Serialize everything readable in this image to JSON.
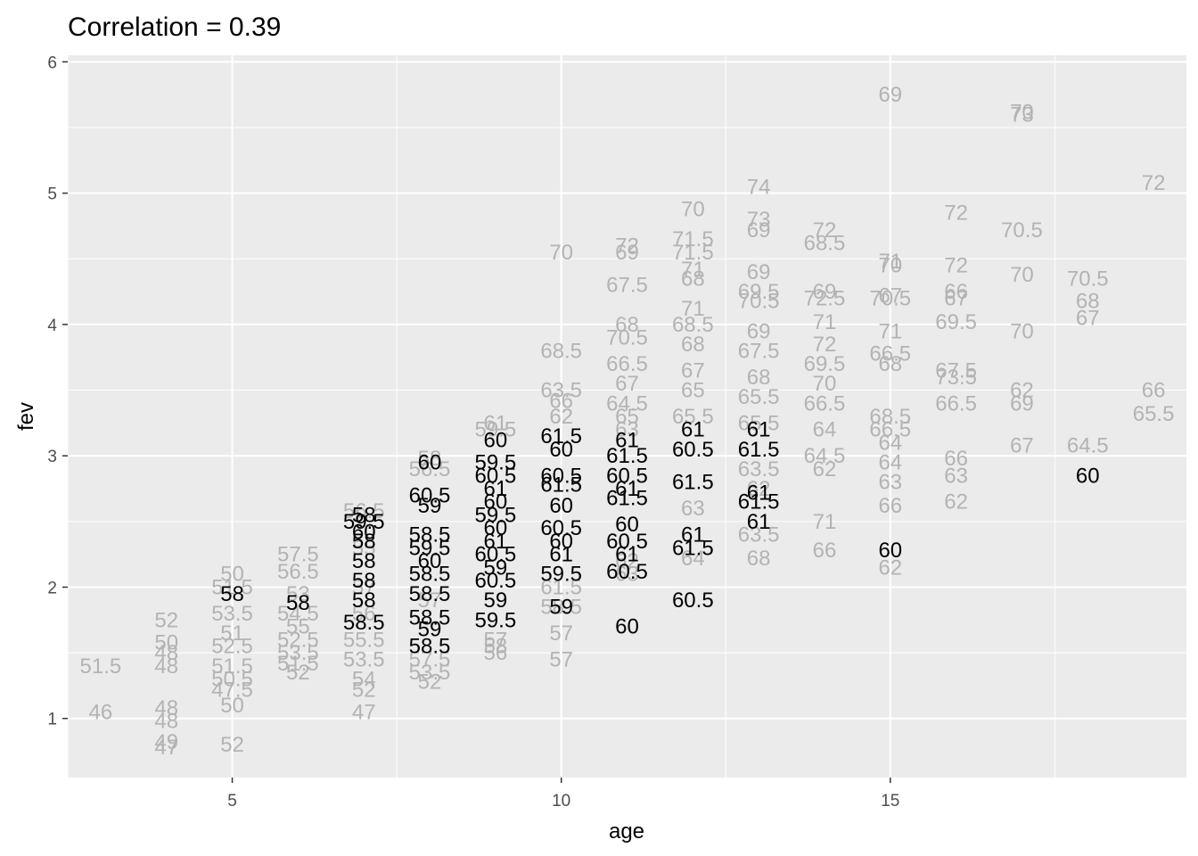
{
  "chart_data": {
    "type": "scatter",
    "title": "Correlation = 0.39",
    "xlabel": "age",
    "ylabel": "fev",
    "xlim": [
      2.5,
      19.5
    ],
    "ylim": [
      0.55,
      6.05
    ],
    "x_ticks": [
      5,
      10,
      15
    ],
    "y_ticks": [
      1,
      2,
      3,
      4,
      5,
      6
    ],
    "grid": true,
    "background": "#ebebeb",
    "colors": {
      "highlight": "#000000",
      "muted": "#b3b3b3"
    },
    "points_note": "text labels (height in inches) plotted at age vs fev; highlighted labels drawn in black, others in grey",
    "highlighted_points": [
      {
        "x": 5,
        "y": 1.95,
        "label": "58"
      },
      {
        "x": 6,
        "y": 1.88,
        "label": "58"
      },
      {
        "x": 7,
        "y": 2.55,
        "label": "58"
      },
      {
        "x": 7,
        "y": 2.5,
        "label": "59.5"
      },
      {
        "x": 7,
        "y": 2.42,
        "label": "60"
      },
      {
        "x": 7,
        "y": 2.35,
        "label": "58"
      },
      {
        "x": 7,
        "y": 2.2,
        "label": "58"
      },
      {
        "x": 7,
        "y": 2.05,
        "label": "58"
      },
      {
        "x": 7,
        "y": 1.9,
        "label": "58"
      },
      {
        "x": 7,
        "y": 1.73,
        "label": "58.5"
      },
      {
        "x": 8,
        "y": 2.95,
        "label": "60"
      },
      {
        "x": 8,
        "y": 2.7,
        "label": "60.5"
      },
      {
        "x": 8,
        "y": 2.62,
        "label": "59"
      },
      {
        "x": 8,
        "y": 2.4,
        "label": "58.5"
      },
      {
        "x": 8,
        "y": 2.3,
        "label": "59.5"
      },
      {
        "x": 8,
        "y": 2.2,
        "label": "60"
      },
      {
        "x": 8,
        "y": 2.1,
        "label": "58.5"
      },
      {
        "x": 8,
        "y": 1.95,
        "label": "58.5"
      },
      {
        "x": 8,
        "y": 1.77,
        "label": "58.5"
      },
      {
        "x": 8,
        "y": 1.68,
        "label": "59"
      },
      {
        "x": 8,
        "y": 1.55,
        "label": "58.5"
      },
      {
        "x": 9,
        "y": 3.12,
        "label": "60"
      },
      {
        "x": 9,
        "y": 2.95,
        "label": "59.5"
      },
      {
        "x": 9,
        "y": 2.85,
        "label": "60.5"
      },
      {
        "x": 9,
        "y": 2.75,
        "label": "61"
      },
      {
        "x": 9,
        "y": 2.65,
        "label": "60"
      },
      {
        "x": 9,
        "y": 2.55,
        "label": "59.5"
      },
      {
        "x": 9,
        "y": 2.45,
        "label": "60"
      },
      {
        "x": 9,
        "y": 2.35,
        "label": "61"
      },
      {
        "x": 9,
        "y": 2.25,
        "label": "60.5"
      },
      {
        "x": 9,
        "y": 2.15,
        "label": "59"
      },
      {
        "x": 9,
        "y": 2.05,
        "label": "60.5"
      },
      {
        "x": 9,
        "y": 1.9,
        "label": "59"
      },
      {
        "x": 9,
        "y": 1.75,
        "label": "59.5"
      },
      {
        "x": 10,
        "y": 3.15,
        "label": "61.5"
      },
      {
        "x": 10,
        "y": 3.05,
        "label": "60"
      },
      {
        "x": 10,
        "y": 2.85,
        "label": "60.5"
      },
      {
        "x": 10,
        "y": 2.78,
        "label": "61.5"
      },
      {
        "x": 10,
        "y": 2.62,
        "label": "60"
      },
      {
        "x": 10,
        "y": 2.45,
        "label": "60.5"
      },
      {
        "x": 10,
        "y": 2.35,
        "label": "60"
      },
      {
        "x": 10,
        "y": 2.25,
        "label": "61"
      },
      {
        "x": 10,
        "y": 2.1,
        "label": "59.5"
      },
      {
        "x": 10,
        "y": 1.85,
        "label": "59"
      },
      {
        "x": 11,
        "y": 3.12,
        "label": "61"
      },
      {
        "x": 11,
        "y": 3.0,
        "label": "61.5"
      },
      {
        "x": 11,
        "y": 2.85,
        "label": "60.5"
      },
      {
        "x": 11,
        "y": 2.75,
        "label": "61"
      },
      {
        "x": 11,
        "y": 2.68,
        "label": "61.5"
      },
      {
        "x": 11,
        "y": 2.48,
        "label": "60"
      },
      {
        "x": 11,
        "y": 2.35,
        "label": "60.5"
      },
      {
        "x": 11,
        "y": 2.25,
        "label": "61"
      },
      {
        "x": 11,
        "y": 2.12,
        "label": "60.5"
      },
      {
        "x": 11,
        "y": 1.7,
        "label": "60"
      },
      {
        "x": 12,
        "y": 3.2,
        "label": "61"
      },
      {
        "x": 12,
        "y": 3.05,
        "label": "60.5"
      },
      {
        "x": 12,
        "y": 2.8,
        "label": "61.5"
      },
      {
        "x": 12,
        "y": 2.4,
        "label": "61"
      },
      {
        "x": 12,
        "y": 2.3,
        "label": "61.5"
      },
      {
        "x": 12,
        "y": 1.9,
        "label": "60.5"
      },
      {
        "x": 13,
        "y": 3.2,
        "label": "61"
      },
      {
        "x": 13,
        "y": 3.05,
        "label": "61.5"
      },
      {
        "x": 13,
        "y": 2.72,
        "label": "61"
      },
      {
        "x": 13,
        "y": 2.65,
        "label": "61.5"
      },
      {
        "x": 13,
        "y": 2.5,
        "label": "61"
      },
      {
        "x": 15,
        "y": 2.28,
        "label": "60"
      },
      {
        "x": 18,
        "y": 2.85,
        "label": "60"
      }
    ],
    "muted_points": [
      {
        "x": 3,
        "y": 1.4,
        "label": "51.5"
      },
      {
        "x": 3,
        "y": 1.05,
        "label": "46"
      },
      {
        "x": 4,
        "y": 1.75,
        "label": "52"
      },
      {
        "x": 4,
        "y": 1.58,
        "label": "50"
      },
      {
        "x": 4,
        "y": 1.5,
        "label": "48"
      },
      {
        "x": 4,
        "y": 1.4,
        "label": "48"
      },
      {
        "x": 4,
        "y": 1.08,
        "label": "48"
      },
      {
        "x": 4,
        "y": 0.98,
        "label": "48"
      },
      {
        "x": 4,
        "y": 0.82,
        "label": "49"
      },
      {
        "x": 4,
        "y": 0.78,
        "label": "47"
      },
      {
        "x": 5,
        "y": 2.1,
        "label": "50"
      },
      {
        "x": 5,
        "y": 2.0,
        "label": "51.5"
      },
      {
        "x": 5,
        "y": 1.8,
        "label": "53.5"
      },
      {
        "x": 5,
        "y": 1.65,
        "label": "51"
      },
      {
        "x": 5,
        "y": 1.55,
        "label": "52.5"
      },
      {
        "x": 5,
        "y": 1.4,
        "label": "51.5"
      },
      {
        "x": 5,
        "y": 1.3,
        "label": "50.5"
      },
      {
        "x": 5,
        "y": 1.22,
        "label": "47.5"
      },
      {
        "x": 5,
        "y": 1.1,
        "label": "50"
      },
      {
        "x": 5,
        "y": 0.8,
        "label": "52"
      },
      {
        "x": 6,
        "y": 2.25,
        "label": "57.5"
      },
      {
        "x": 6,
        "y": 2.12,
        "label": "56.5"
      },
      {
        "x": 6,
        "y": 1.95,
        "label": "53"
      },
      {
        "x": 6,
        "y": 1.8,
        "label": "54.5"
      },
      {
        "x": 6,
        "y": 1.7,
        "label": "55"
      },
      {
        "x": 6,
        "y": 1.6,
        "label": "52.5"
      },
      {
        "x": 6,
        "y": 1.5,
        "label": "53.5"
      },
      {
        "x": 6,
        "y": 1.42,
        "label": "51.5"
      },
      {
        "x": 6,
        "y": 1.35,
        "label": "52"
      },
      {
        "x": 7,
        "y": 2.58,
        "label": "56.5"
      },
      {
        "x": 7,
        "y": 2.3,
        "label": "55"
      },
      {
        "x": 7,
        "y": 2.0,
        "label": "57"
      },
      {
        "x": 7,
        "y": 1.8,
        "label": "56"
      },
      {
        "x": 7,
        "y": 1.6,
        "label": "55.5"
      },
      {
        "x": 7,
        "y": 1.45,
        "label": "53.5"
      },
      {
        "x": 7,
        "y": 1.3,
        "label": "54"
      },
      {
        "x": 7,
        "y": 1.22,
        "label": "52"
      },
      {
        "x": 7,
        "y": 1.05,
        "label": "47"
      },
      {
        "x": 8,
        "y": 2.98,
        "label": "58"
      },
      {
        "x": 8,
        "y": 2.9,
        "label": "56.5"
      },
      {
        "x": 8,
        "y": 1.9,
        "label": "57"
      },
      {
        "x": 8,
        "y": 1.45,
        "label": "57.5"
      },
      {
        "x": 8,
        "y": 1.35,
        "label": "53.5"
      },
      {
        "x": 8,
        "y": 1.28,
        "label": "52"
      },
      {
        "x": 9,
        "y": 3.25,
        "label": "61"
      },
      {
        "x": 9,
        "y": 3.2,
        "label": "59.5"
      },
      {
        "x": 9,
        "y": 1.6,
        "label": "57"
      },
      {
        "x": 9,
        "y": 1.55,
        "label": "58"
      },
      {
        "x": 9,
        "y": 1.5,
        "label": "56"
      },
      {
        "x": 10,
        "y": 4.55,
        "label": "70"
      },
      {
        "x": 10,
        "y": 3.8,
        "label": "68.5"
      },
      {
        "x": 10,
        "y": 3.5,
        "label": "63.5"
      },
      {
        "x": 10,
        "y": 3.42,
        "label": "66"
      },
      {
        "x": 10,
        "y": 3.3,
        "label": "62"
      },
      {
        "x": 10,
        "y": 2.0,
        "label": "61.5"
      },
      {
        "x": 10,
        "y": 1.85,
        "label": "58.5"
      },
      {
        "x": 10,
        "y": 1.65,
        "label": "57"
      },
      {
        "x": 10,
        "y": 1.45,
        "label": "57"
      },
      {
        "x": 11,
        "y": 4.6,
        "label": "72"
      },
      {
        "x": 11,
        "y": 4.55,
        "label": "69"
      },
      {
        "x": 11,
        "y": 4.3,
        "label": "67.5"
      },
      {
        "x": 11,
        "y": 4.0,
        "label": "68"
      },
      {
        "x": 11,
        "y": 3.9,
        "label": "70.5"
      },
      {
        "x": 11,
        "y": 3.7,
        "label": "66.5"
      },
      {
        "x": 11,
        "y": 3.55,
        "label": "67"
      },
      {
        "x": 11,
        "y": 3.4,
        "label": "64.5"
      },
      {
        "x": 11,
        "y": 3.3,
        "label": "65"
      },
      {
        "x": 11,
        "y": 3.2,
        "label": "63"
      },
      {
        "x": 11,
        "y": 2.2,
        "label": "62"
      },
      {
        "x": 11,
        "y": 2.1,
        "label": "63"
      },
      {
        "x": 12,
        "y": 4.88,
        "label": "70"
      },
      {
        "x": 12,
        "y": 4.65,
        "label": "71.5"
      },
      {
        "x": 12,
        "y": 4.55,
        "label": "71.5"
      },
      {
        "x": 12,
        "y": 4.42,
        "label": "71"
      },
      {
        "x": 12,
        "y": 4.35,
        "label": "68"
      },
      {
        "x": 12,
        "y": 4.12,
        "label": "71"
      },
      {
        "x": 12,
        "y": 4.0,
        "label": "68.5"
      },
      {
        "x": 12,
        "y": 3.85,
        "label": "68"
      },
      {
        "x": 12,
        "y": 3.65,
        "label": "67"
      },
      {
        "x": 12,
        "y": 3.5,
        "label": "65"
      },
      {
        "x": 12,
        "y": 3.3,
        "label": "65.5"
      },
      {
        "x": 12,
        "y": 2.6,
        "label": "63"
      },
      {
        "x": 12,
        "y": 2.22,
        "label": "64"
      },
      {
        "x": 13,
        "y": 5.05,
        "label": "74"
      },
      {
        "x": 13,
        "y": 4.8,
        "label": "73"
      },
      {
        "x": 13,
        "y": 4.72,
        "label": "69"
      },
      {
        "x": 13,
        "y": 4.4,
        "label": "69"
      },
      {
        "x": 13,
        "y": 4.25,
        "label": "69.5"
      },
      {
        "x": 13,
        "y": 4.18,
        "label": "70.5"
      },
      {
        "x": 13,
        "y": 3.95,
        "label": "69"
      },
      {
        "x": 13,
        "y": 3.8,
        "label": "67.5"
      },
      {
        "x": 13,
        "y": 3.6,
        "label": "68"
      },
      {
        "x": 13,
        "y": 3.45,
        "label": "65.5"
      },
      {
        "x": 13,
        "y": 3.25,
        "label": "65.5"
      },
      {
        "x": 13,
        "y": 2.9,
        "label": "63.5"
      },
      {
        "x": 13,
        "y": 2.75,
        "label": "62"
      },
      {
        "x": 13,
        "y": 2.4,
        "label": "63.5"
      },
      {
        "x": 13,
        "y": 2.22,
        "label": "68"
      },
      {
        "x": 14,
        "y": 4.72,
        "label": "72"
      },
      {
        "x": 14,
        "y": 4.62,
        "label": "68.5"
      },
      {
        "x": 14,
        "y": 4.25,
        "label": "69"
      },
      {
        "x": 14,
        "y": 4.2,
        "label": "72.5"
      },
      {
        "x": 14,
        "y": 4.02,
        "label": "71"
      },
      {
        "x": 14,
        "y": 3.85,
        "label": "72"
      },
      {
        "x": 14,
        "y": 3.7,
        "label": "69.5"
      },
      {
        "x": 14,
        "y": 3.55,
        "label": "70"
      },
      {
        "x": 14,
        "y": 3.4,
        "label": "66.5"
      },
      {
        "x": 14,
        "y": 3.2,
        "label": "64"
      },
      {
        "x": 14,
        "y": 3.0,
        "label": "64.5"
      },
      {
        "x": 14,
        "y": 2.9,
        "label": "62"
      },
      {
        "x": 14,
        "y": 2.5,
        "label": "71"
      },
      {
        "x": 14,
        "y": 2.28,
        "label": "66"
      },
      {
        "x": 15,
        "y": 5.75,
        "label": "69"
      },
      {
        "x": 15,
        "y": 4.48,
        "label": "71"
      },
      {
        "x": 15,
        "y": 4.45,
        "label": "70"
      },
      {
        "x": 15,
        "y": 4.22,
        "label": "67"
      },
      {
        "x": 15,
        "y": 4.2,
        "label": "70.5"
      },
      {
        "x": 15,
        "y": 3.95,
        "label": "71"
      },
      {
        "x": 15,
        "y": 3.78,
        "label": "66.5"
      },
      {
        "x": 15,
        "y": 3.7,
        "label": "68"
      },
      {
        "x": 15,
        "y": 3.3,
        "label": "68.5"
      },
      {
        "x": 15,
        "y": 3.2,
        "label": "66.5"
      },
      {
        "x": 15,
        "y": 3.1,
        "label": "64"
      },
      {
        "x": 15,
        "y": 2.95,
        "label": "64"
      },
      {
        "x": 15,
        "y": 2.8,
        "label": "63"
      },
      {
        "x": 15,
        "y": 2.62,
        "label": "66"
      },
      {
        "x": 15,
        "y": 2.15,
        "label": "62"
      },
      {
        "x": 16,
        "y": 4.85,
        "label": "72"
      },
      {
        "x": 16,
        "y": 4.45,
        "label": "72"
      },
      {
        "x": 16,
        "y": 4.25,
        "label": "66"
      },
      {
        "x": 16,
        "y": 4.2,
        "label": "67"
      },
      {
        "x": 16,
        "y": 4.02,
        "label": "69.5"
      },
      {
        "x": 16,
        "y": 3.65,
        "label": "67.5"
      },
      {
        "x": 16,
        "y": 3.6,
        "label": "73.5"
      },
      {
        "x": 16,
        "y": 3.4,
        "label": "66.5"
      },
      {
        "x": 16,
        "y": 2.98,
        "label": "66"
      },
      {
        "x": 16,
        "y": 2.85,
        "label": "63"
      },
      {
        "x": 16,
        "y": 2.65,
        "label": "62"
      },
      {
        "x": 17,
        "y": 5.62,
        "label": "70"
      },
      {
        "x": 17,
        "y": 5.6,
        "label": "73"
      },
      {
        "x": 17,
        "y": 4.72,
        "label": "70.5"
      },
      {
        "x": 17,
        "y": 4.38,
        "label": "70"
      },
      {
        "x": 17,
        "y": 3.95,
        "label": "70"
      },
      {
        "x": 17,
        "y": 3.5,
        "label": "62"
      },
      {
        "x": 17,
        "y": 3.4,
        "label": "69"
      },
      {
        "x": 17,
        "y": 3.08,
        "label": "67"
      },
      {
        "x": 18,
        "y": 4.35,
        "label": "70.5"
      },
      {
        "x": 18,
        "y": 4.18,
        "label": "68"
      },
      {
        "x": 18,
        "y": 4.05,
        "label": "67"
      },
      {
        "x": 18,
        "y": 3.08,
        "label": "64.5"
      },
      {
        "x": 19,
        "y": 5.08,
        "label": "72"
      },
      {
        "x": 19,
        "y": 3.5,
        "label": "66"
      },
      {
        "x": 19,
        "y": 3.32,
        "label": "65.5"
      }
    ]
  }
}
